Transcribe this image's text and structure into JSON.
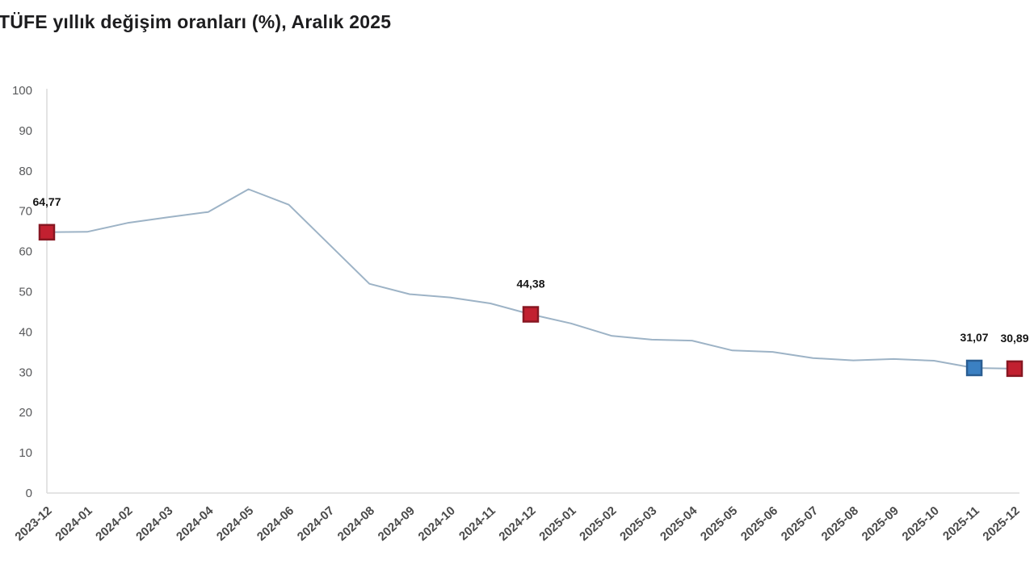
{
  "title": "TÜFE yıllık değişim oranları (%), Aralık 2025",
  "chart_data": {
    "type": "line",
    "title": "TÜFE yıllık değişim oranları (%), Aralık 2025",
    "xlabel": "",
    "ylabel": "",
    "ylim": [
      0,
      100
    ],
    "ytick_step": 10,
    "grid": false,
    "legend_position": "none",
    "line_color": "#9db3c6",
    "axis_color": "#dcdcdc",
    "categories": [
      "2023-12",
      "2024-01",
      "2024-02",
      "2024-03",
      "2024-04",
      "2024-05",
      "2024-06",
      "2024-07",
      "2024-08",
      "2024-09",
      "2024-10",
      "2024-11",
      "2024-12",
      "2025-01",
      "2025-02",
      "2025-03",
      "2025-04",
      "2025-05",
      "2025-06",
      "2025-07",
      "2025-08",
      "2025-09",
      "2025-10",
      "2025-11",
      "2025-12"
    ],
    "values": [
      64.77,
      64.86,
      67.07,
      68.5,
      69.8,
      75.45,
      71.6,
      61.78,
      51.97,
      49.38,
      48.58,
      47.09,
      44.38,
      42.12,
      39.05,
      38.1,
      37.86,
      35.41,
      35.05,
      33.52,
      32.95,
      33.29,
      32.87,
      31.07,
      30.89
    ],
    "annotated_points": [
      {
        "category": "2023-12",
        "index": 0,
        "label": "64,77",
        "marker_color": "#c22030",
        "marker_border": "#871722"
      },
      {
        "category": "2024-12",
        "index": 12,
        "label": "44,38",
        "marker_color": "#c22030",
        "marker_border": "#871722"
      },
      {
        "category": "2025-11",
        "index": 23,
        "label": "31,07",
        "marker_color": "#3b80c2",
        "marker_border": "#2a5d92"
      },
      {
        "category": "2025-12",
        "index": 24,
        "label": "30,89",
        "marker_color": "#c22030",
        "marker_border": "#871722"
      }
    ]
  }
}
